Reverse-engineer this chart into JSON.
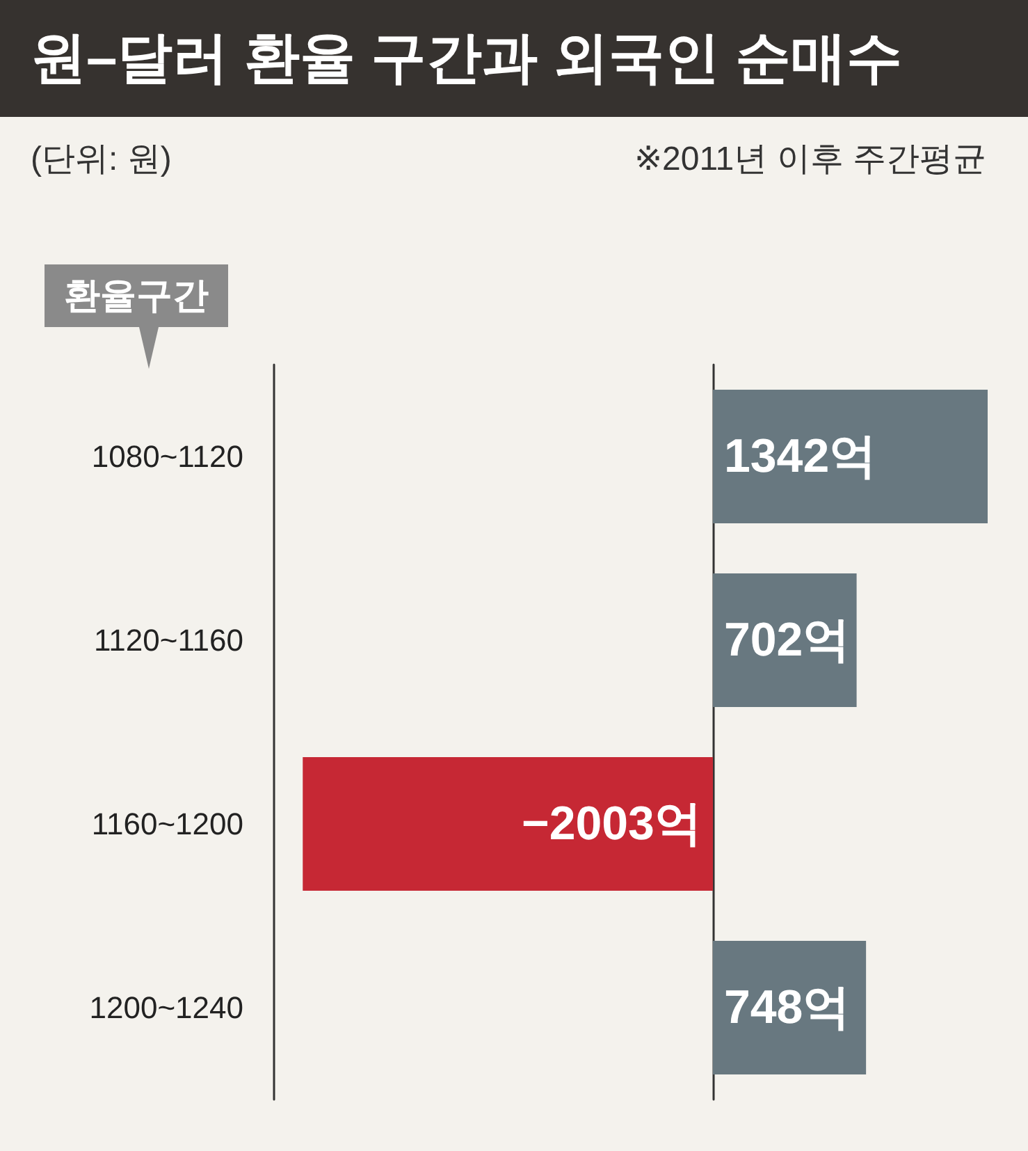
{
  "chart_data": {
    "type": "bar",
    "orientation": "horizontal",
    "title": "원–달러 환율 구간과 외국인 순매수",
    "subtitle": "(단위: 원)",
    "annotations": [
      "※2011년 이후 주간평균"
    ],
    "ylabel": "환율구간",
    "categories": [
      "1080~1120",
      "1120~1160",
      "1160~1200",
      "1200~1240"
    ],
    "values": [
      1342,
      702,
      -2003,
      748
    ],
    "colors": [
      "#687880",
      "#687880",
      "#c62834",
      "#687880"
    ],
    "value_labels": [
      "1342억",
      "702억",
      "−2003억",
      "748억"
    ]
  }
}
